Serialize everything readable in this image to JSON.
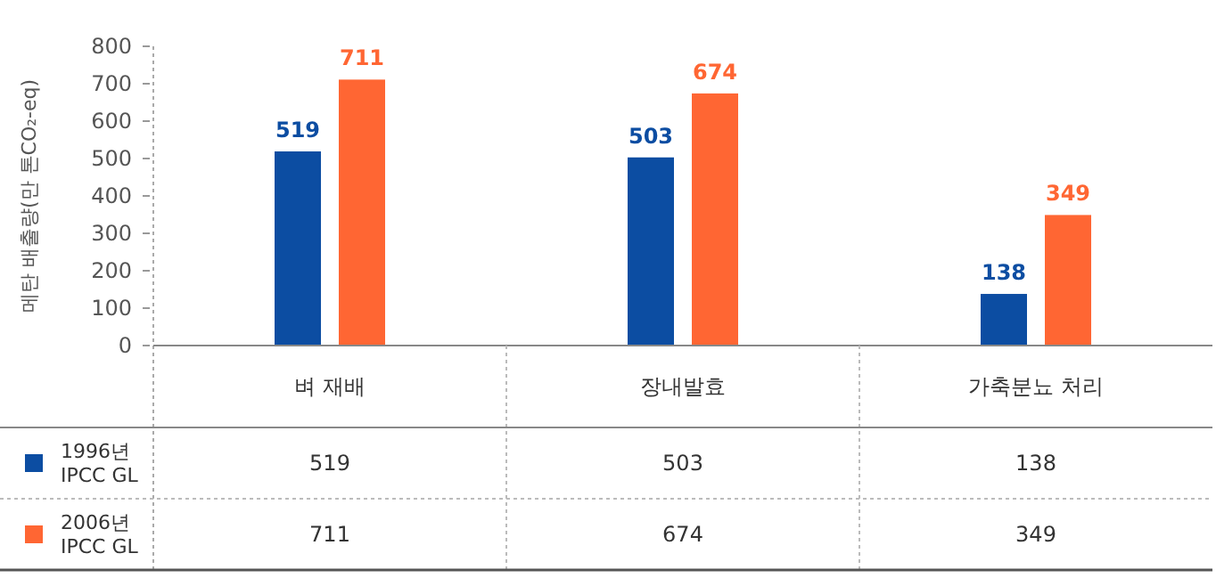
{
  "chart_data": {
    "type": "bar",
    "ylabel": "메탄 배출량(만 톤CO₂-eq)",
    "categories": [
      "벼 재배",
      "장내발효",
      "가축분뇨 처리"
    ],
    "series": [
      {
        "name": "1996년 IPCC GL",
        "color": "#0c4da2",
        "values": [
          519,
          503,
          138
        ],
        "value_labels": [
          "519",
          "503",
          "138"
        ]
      },
      {
        "name": "2006년 IPCC GL",
        "color": "#ff6633",
        "values": [
          711,
          674,
          349
        ],
        "value_labels": [
          "711",
          "674",
          "349"
        ]
      }
    ],
    "ylim": [
      0,
      800
    ],
    "yticks": [
      0,
      100,
      200,
      300,
      400,
      500,
      600,
      700,
      800
    ],
    "legend": "bottom left",
    "grid": false
  }
}
